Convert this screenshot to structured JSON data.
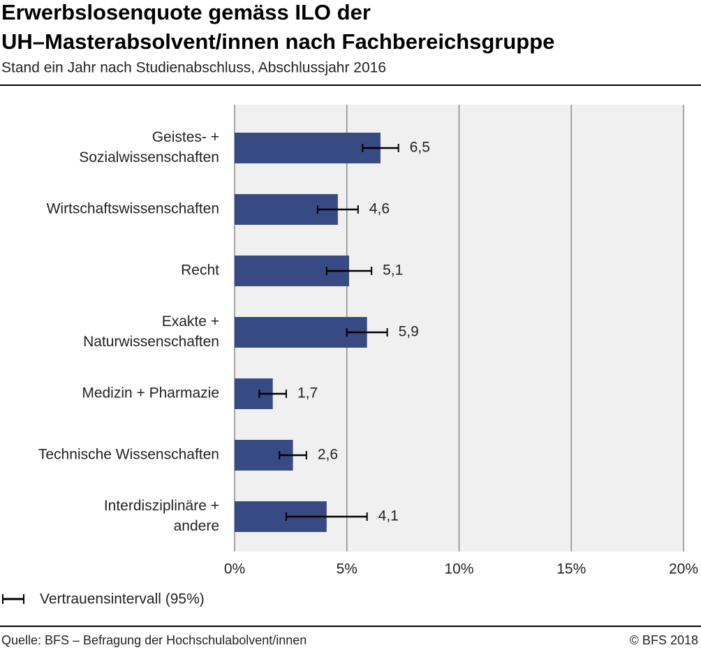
{
  "chart_data": {
    "type": "bar",
    "orientation": "horizontal",
    "title": [
      "Erwerbslosenquote gemäss ILO der",
      "UH–Masterabsolvent/innen nach Fachbereichsgruppe"
    ],
    "subtitle": "Stand ein Jahr nach Studienabschluss, Abschlussjahr 2016",
    "categories": [
      [
        "Geistes- +",
        "Sozialwissenschaften"
      ],
      [
        "Wirtschaftswissenschaften"
      ],
      [
        "Recht"
      ],
      [
        "Exakte +",
        "Naturwissenschaften"
      ],
      [
        "Medizin + Pharmazie"
      ],
      [
        "Technische Wissenschaften"
      ],
      [
        "Interdisziplinäre +",
        "andere"
      ]
    ],
    "values": [
      6.5,
      4.6,
      5.1,
      5.9,
      1.7,
      2.6,
      4.1
    ],
    "value_labels": [
      "6,5",
      "4,6",
      "5,1",
      "5,9",
      "1,7",
      "2,6",
      "4,1"
    ],
    "errors": [
      0.8,
      0.9,
      1.0,
      0.9,
      0.6,
      0.6,
      1.8
    ],
    "color": "#374a83",
    "xlim": [
      0,
      20
    ],
    "xticks": [
      {
        "value": 0,
        "label": "0%"
      },
      {
        "value": 5,
        "label": "5%"
      },
      {
        "value": 10,
        "label": "10%"
      },
      {
        "value": 15,
        "label": "15%"
      },
      {
        "value": 20,
        "label": "20%"
      }
    ],
    "grid": true,
    "legend": "Vertrauensintervall (95%)",
    "source": "Quelle: BFS – Befragung der Hochschulabolvent/innen",
    "copyright": "© BFS 2018"
  }
}
